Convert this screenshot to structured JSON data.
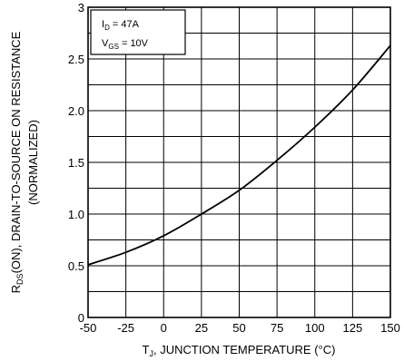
{
  "chart_data": {
    "type": "line",
    "title": "",
    "xlabel_main": "T",
    "xlabel_sub": "J",
    "xlabel_rest": ", JUNCTION TEMPERATURE (°C)",
    "ylabel_main": "R",
    "ylabel_sub": "DS",
    "ylabel_rest": "(ON), DRAIN-TO-SOURCE ON RESISTANCE",
    "ylabel_line2": "(NORMALIZED)",
    "xlim": [
      -50,
      150
    ],
    "ylim": [
      0,
      3
    ],
    "xticks": [
      "-50",
      "-25",
      "0",
      "25",
      "50",
      "75",
      "100",
      "125",
      "150"
    ],
    "yticks": [
      "0",
      "0.5",
      "1.0",
      "1.5",
      "2.0",
      "2.5",
      "3"
    ],
    "grid": true,
    "legend": {
      "line1_main": "I",
      "line1_sub": "D",
      "line1_rest": " = 47A",
      "line2_main": "V",
      "line2_sub": "GS",
      "line2_rest": " = 10V"
    },
    "series": [
      {
        "x": [
          -50,
          -25,
          0,
          25,
          50,
          75,
          100,
          125,
          150
        ],
        "y": [
          0.51,
          0.63,
          0.79,
          1.0,
          1.23,
          1.52,
          1.84,
          2.2,
          2.63
        ]
      }
    ],
    "colors": {
      "line": "#000000",
      "grid": "#000000",
      "background": "#ffffff"
    }
  }
}
